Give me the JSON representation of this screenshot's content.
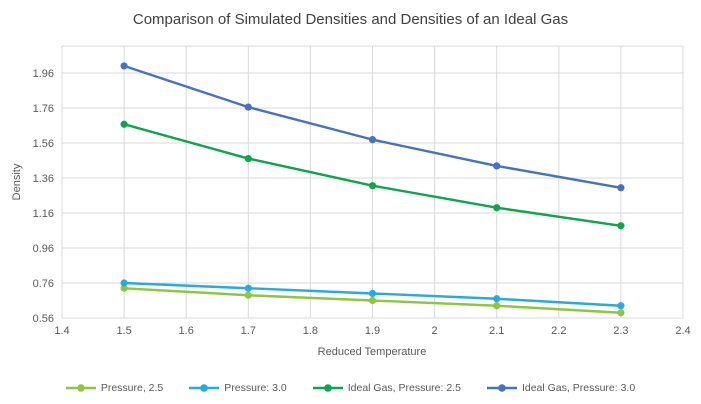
{
  "chart_data": {
    "type": "line",
    "title": "Comparison of Simulated Densities and Densities of an Ideal Gas",
    "xlabel": "Reduced Temperature",
    "ylabel": "Density",
    "x": [
      1.5,
      1.7,
      1.9,
      2.1,
      2.3
    ],
    "series": [
      {
        "name": "Pressure, 2.5",
        "color": "#8EC63F",
        "values": [
          0.73,
          0.69,
          0.66,
          0.63,
          0.59
        ]
      },
      {
        "name": "Pressure: 3.0",
        "color": "#27AAE1",
        "values": [
          0.76,
          0.73,
          0.7,
          0.67,
          0.63
        ]
      },
      {
        "name": "Ideal Gas, Pressure: 2.5",
        "color": "#0CA64F",
        "values": [
          1.667,
          1.471,
          1.316,
          1.19,
          1.087
        ]
      },
      {
        "name": "Ideal Gas, Pressure: 3.0",
        "color": "#4472C4",
        "values": [
          2.0,
          1.765,
          1.579,
          1.429,
          1.304
        ]
      }
    ],
    "marker": "circle",
    "xlim": [
      1.4,
      2.4
    ],
    "ylim": [
      0.56,
      2.114
    ],
    "x_ticks": [
      1.4,
      1.5,
      1.6,
      1.7,
      1.8,
      1.9,
      2.0,
      2.1,
      2.2,
      2.3,
      2.4
    ],
    "x_tick_labels": [
      "1.4",
      "1.5",
      "1.6",
      "1.7",
      "1.8",
      "1.9",
      "2",
      "2.1",
      "2.2",
      "2.3",
      "2.4"
    ],
    "y_ticks": [
      0.56,
      0.76,
      0.96,
      1.16,
      1.36,
      1.56,
      1.76,
      1.96
    ],
    "y_tick_labels": [
      "0.56",
      "0.76",
      "0.96",
      "1.16",
      "1.36",
      "1.56",
      "1.76",
      "1.96"
    ],
    "grid": true,
    "legend_position": "bottom",
    "colors": {
      "gridline": "#D9D9D9",
      "plot_border": "#D9D9D9",
      "axis_text": "#595959",
      "title_text": "#404040",
      "background": "#FFFFFF"
    }
  }
}
